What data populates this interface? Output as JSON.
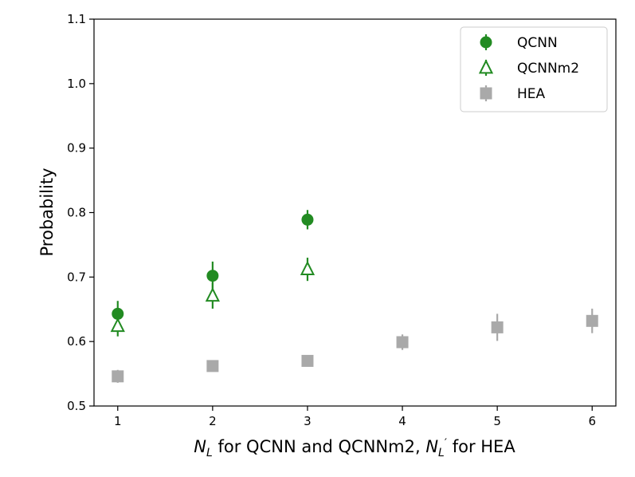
{
  "chart_data": {
    "type": "scatter",
    "title": "",
    "xlabel": {
      "main": "N",
      "main_sub": "L",
      "middle": " for QCNN and QCNNm2, ",
      "second": "N",
      "second_prime": "′",
      "second_sub": "L",
      "end": " for HEA"
    },
    "ylabel": "Probability",
    "xlim": [
      0.75,
      6.25
    ],
    "ylim": [
      0.5,
      1.1
    ],
    "xticks": [
      1,
      2,
      3,
      4,
      5,
      6
    ],
    "xtick_labels": [
      "1",
      "2",
      "3",
      "4",
      "5",
      "6"
    ],
    "yticks": [
      0.5,
      0.6,
      0.7,
      0.8,
      0.9,
      1.0,
      1.1
    ],
    "ytick_labels": [
      "0.5",
      "0.6",
      "0.7",
      "0.8",
      "0.9",
      "1.0",
      "1.1"
    ],
    "grid": false,
    "legend_position": "top-right",
    "series": [
      {
        "name": "QCNN",
        "marker": "circle",
        "filled": true,
        "color": "#228B22",
        "points": [
          {
            "x": 1,
            "y": 0.643,
            "err": 0.02
          },
          {
            "x": 2,
            "y": 0.702,
            "err": 0.022
          },
          {
            "x": 3,
            "y": 0.789,
            "err": 0.015
          }
        ]
      },
      {
        "name": "QCNNm2",
        "marker": "triangle",
        "filled": false,
        "color": "#228B22",
        "points": [
          {
            "x": 1,
            "y": 0.624,
            "err": 0.016
          },
          {
            "x": 2,
            "y": 0.671,
            "err": 0.02
          },
          {
            "x": 3,
            "y": 0.712,
            "err": 0.018
          }
        ]
      },
      {
        "name": "HEA",
        "marker": "square",
        "filled": true,
        "color": "#A9A9A9",
        "points": [
          {
            "x": 1,
            "y": 0.546,
            "err": 0.01
          },
          {
            "x": 2,
            "y": 0.562,
            "err": 0.007
          },
          {
            "x": 3,
            "y": 0.57,
            "err": 0.008
          },
          {
            "x": 4,
            "y": 0.599,
            "err": 0.012
          },
          {
            "x": 5,
            "y": 0.622,
            "err": 0.021
          },
          {
            "x": 6,
            "y": 0.632,
            "err": 0.019
          }
        ]
      }
    ]
  }
}
